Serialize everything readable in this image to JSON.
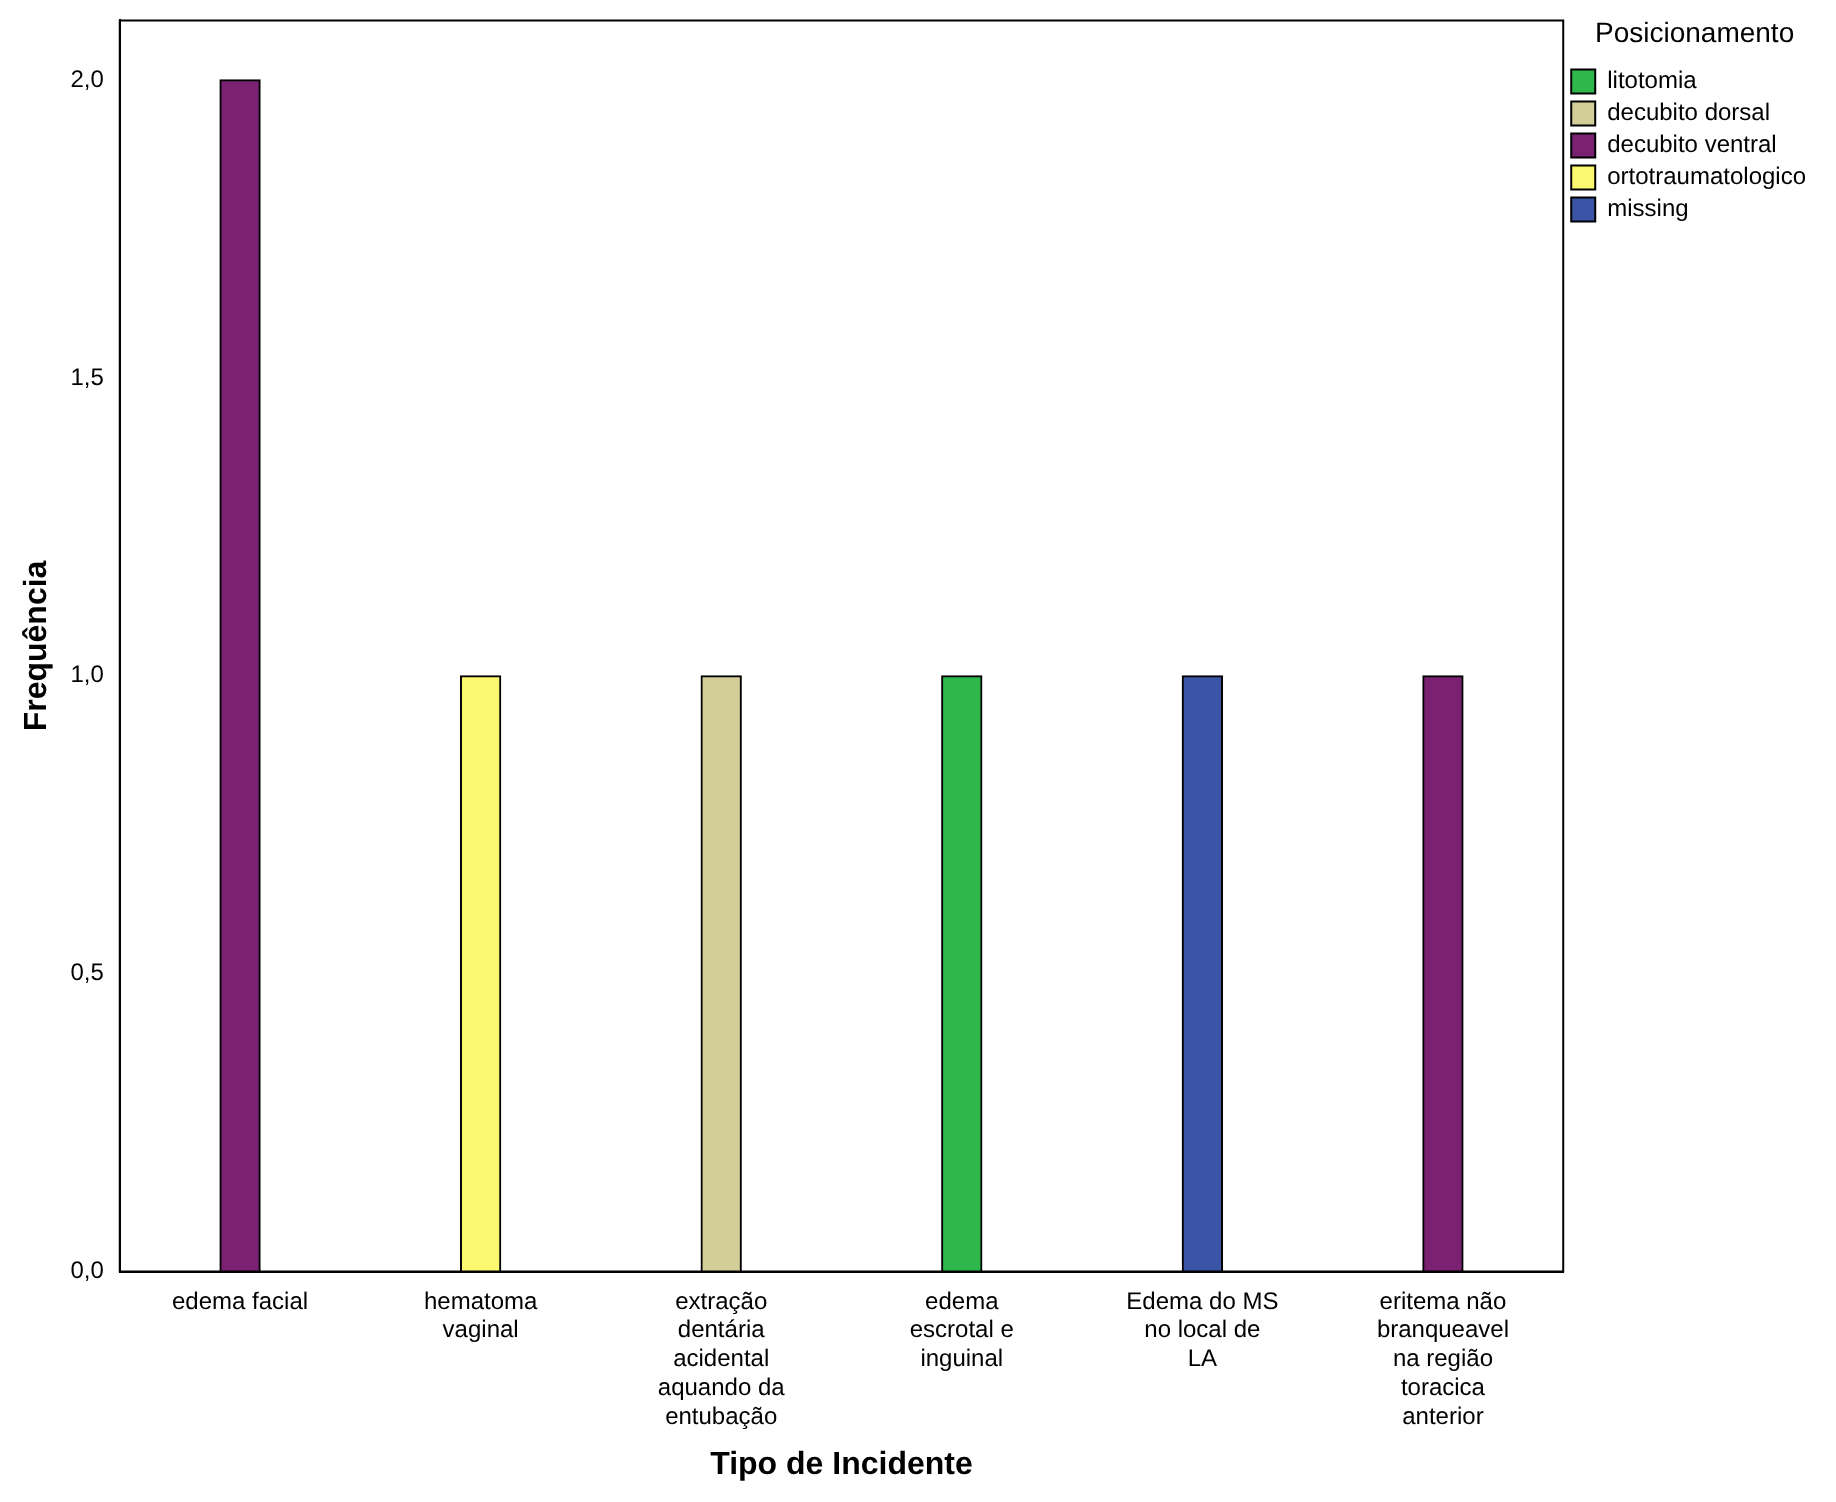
{
  "chart_data": {
    "type": "bar",
    "xlabel": "Tipo de Incidente",
    "ylabel": "Frequência",
    "legend_title": "Posicionamento",
    "categories": [
      "edema facial",
      "hematoma vaginal",
      "extração dentária acidental aquando da entubação",
      "edema escrotal e inguinal",
      "Edema do MS no local de LA",
      "eritema não branqueavel na região toracica anterior"
    ],
    "series": [
      {
        "name": "litotomia",
        "color": "#2eb84b",
        "values": [
          null,
          null,
          null,
          1,
          null,
          null
        ]
      },
      {
        "name": "decubito dorsal",
        "color": "#d3ce98",
        "values": [
          null,
          null,
          1,
          null,
          null,
          null
        ]
      },
      {
        "name": "decubito ventral",
        "color": "#7a2171",
        "values": [
          2,
          null,
          null,
          null,
          null,
          1
        ]
      },
      {
        "name": "ortotraumatologico",
        "color": "#fbf870",
        "values": [
          null,
          1,
          null,
          null,
          null,
          null
        ]
      },
      {
        "name": "missing",
        "color": "#3b55a6",
        "values": [
          null,
          null,
          null,
          null,
          1,
          null
        ]
      }
    ],
    "ylim": [
      0,
      2.1
    ],
    "yticks": [
      {
        "value": 0,
        "label": "0,0"
      },
      {
        "value": 0.5,
        "label": "0,5"
      },
      {
        "value": 1,
        "label": "1,0"
      },
      {
        "value": 1.5,
        "label": "1,5"
      },
      {
        "value": 2,
        "label": "2,0"
      }
    ],
    "grid": false,
    "legend": "top right"
  }
}
